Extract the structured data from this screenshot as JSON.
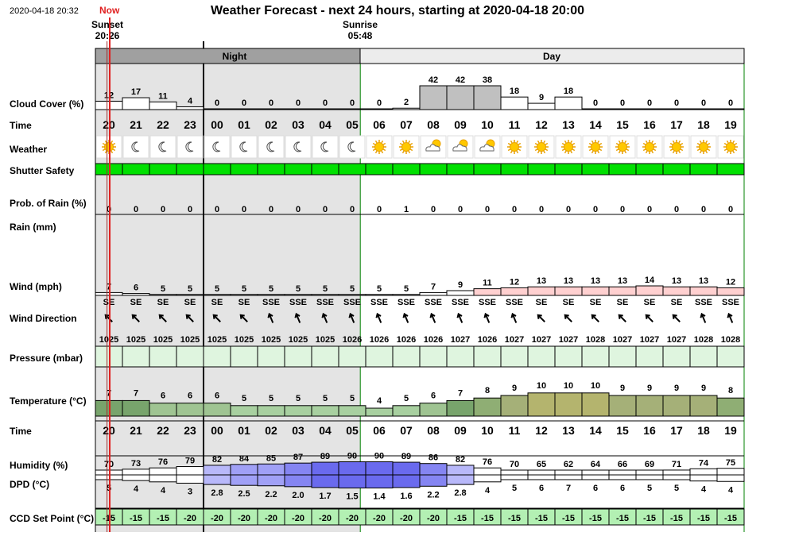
{
  "header": {
    "timestamp": "2020-04-18 20:32",
    "now_label": "Now",
    "title": "Weather Forecast - next 24 hours, starting at 2020-04-18 20:00",
    "sunset_label": "Sunset",
    "sunset_time": "20:26",
    "sunrise_label": "Sunrise",
    "sunrise_time": "05:48"
  },
  "bands": {
    "night": "Night",
    "day": "Day"
  },
  "row_labels": {
    "cloud": "Cloud Cover (%)",
    "time": "Time",
    "weather": "Weather",
    "shutter": "Shutter Safety",
    "rain_prob": "Prob. of Rain (%)",
    "rain": "Rain (mm)",
    "wind": "Wind (mph)",
    "wind_dir": "Wind Direction",
    "pressure": "Pressure (mbar)",
    "temperature": "Temperature (°C)",
    "time2": "Time",
    "humidity": "Humidity (%)",
    "dpd": "DPD (°C)",
    "ccd": "CCD Set Point (°C)"
  },
  "colors": {
    "night_band": "#a0a0a0",
    "night_bg": "#e4e4e4",
    "day_band": "#ececec",
    "now_line": "#e02020",
    "sunrise_line": "#008000",
    "shutter_safe": "#00e000",
    "pressure_fill": "#dff5df",
    "ccd_fill": "#b3f0b3",
    "cloud_fill": "#c0c0c0",
    "wind_fill": "#ffd0d0"
  },
  "chart_data": {
    "type": "table",
    "hours": [
      "20",
      "21",
      "22",
      "23",
      "00",
      "01",
      "02",
      "03",
      "04",
      "05",
      "06",
      "07",
      "08",
      "09",
      "10",
      "11",
      "12",
      "13",
      "14",
      "15",
      "16",
      "17",
      "18",
      "19"
    ],
    "cloud_cover": [
      12,
      17,
      11,
      4,
      0,
      0,
      0,
      0,
      0,
      0,
      0,
      2,
      42,
      42,
      38,
      18,
      9,
      18,
      0,
      0,
      0,
      0,
      0,
      0
    ],
    "weather_icons": [
      "sun",
      "moon",
      "moon",
      "moon",
      "moon",
      "moon",
      "moon",
      "moon",
      "moon",
      "moon",
      "sun",
      "sun",
      "partly-cloudy",
      "partly-cloudy",
      "partly-cloudy",
      "sun",
      "sun",
      "sun",
      "sun",
      "sun",
      "sun",
      "sun",
      "sun",
      "sun"
    ],
    "shutter_safety": [
      "safe",
      "safe",
      "safe",
      "safe",
      "safe",
      "safe",
      "safe",
      "safe",
      "safe",
      "safe",
      "safe",
      "safe",
      "safe",
      "safe",
      "safe",
      "safe",
      "safe",
      "safe",
      "safe",
      "safe",
      "safe",
      "safe",
      "safe",
      "safe"
    ],
    "rain_probability": [
      0,
      0,
      0,
      0,
      0,
      0,
      0,
      0,
      0,
      0,
      0,
      1,
      0,
      0,
      0,
      0,
      0,
      0,
      0,
      0,
      0,
      0,
      0,
      0
    ],
    "wind_speed": [
      7,
      6,
      5,
      5,
      5,
      5,
      5,
      5,
      5,
      5,
      5,
      5,
      7,
      9,
      11,
      12,
      13,
      13,
      13,
      13,
      14,
      13,
      13,
      12
    ],
    "wind_direction": [
      "SE",
      "SE",
      "SE",
      "SE",
      "SE",
      "SE",
      "SSE",
      "SSE",
      "SSE",
      "SSE",
      "SSE",
      "SSE",
      "SSE",
      "SSE",
      "SSE",
      "SSE",
      "SE",
      "SE",
      "SE",
      "SE",
      "SE",
      "SE",
      "SSE",
      "SSE"
    ],
    "pressure": [
      1025,
      1025,
      1025,
      1025,
      1025,
      1025,
      1025,
      1025,
      1025,
      1026,
      1026,
      1026,
      1026,
      1027,
      1026,
      1027,
      1027,
      1027,
      1028,
      1027,
      1027,
      1027,
      1028,
      1028
    ],
    "temperature": [
      7,
      7,
      6,
      6,
      6,
      5,
      5,
      5,
      5,
      5,
      4,
      5,
      6,
      7,
      8,
      9,
      10,
      10,
      10,
      9,
      9,
      9,
      9,
      8
    ],
    "humidity": [
      70,
      73,
      76,
      79,
      82,
      84,
      85,
      87,
      89,
      90,
      90,
      89,
      86,
      82,
      76,
      70,
      65,
      62,
      64,
      66,
      69,
      71,
      74,
      75
    ],
    "dpd": [
      "5",
      "4",
      "4",
      "3",
      "2.8",
      "2.5",
      "2.2",
      "2.0",
      "1.7",
      "1.5",
      "1.4",
      "1.6",
      "2.2",
      "2.8",
      "4",
      "5",
      "6",
      "7",
      "6",
      "6",
      "5",
      "5",
      "4",
      "4"
    ],
    "ccd_set_point": [
      -15,
      -15,
      -15,
      -20,
      -20,
      -20,
      -20,
      -20,
      -20,
      -20,
      -20,
      -20,
      -20,
      -15,
      -15,
      -15,
      -15,
      -15,
      -15,
      -15,
      -15,
      -15,
      -15,
      -15
    ],
    "night_start_index": 0,
    "night_end_index": 9.8,
    "now_index": 0.53,
    "sunset_index": 0.43,
    "sunrise_index": 9.8
  }
}
